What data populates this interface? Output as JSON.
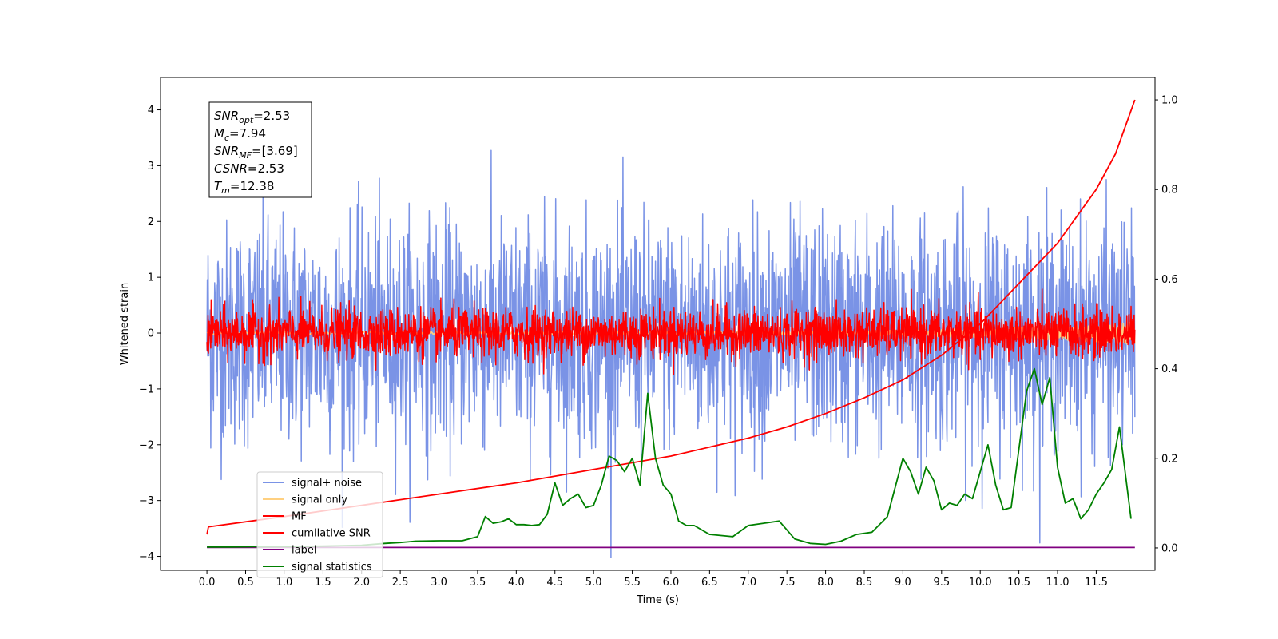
{
  "chart_data": {
    "type": "line",
    "title": "",
    "xlabel": "Time (s)",
    "ylabel": "Whitened strain",
    "y2label": "",
    "xlim": [
      -0.6,
      12.26
    ],
    "ylim": [
      -4.25,
      4.58
    ],
    "y2lim": [
      -0.05,
      1.05
    ],
    "xticks": [
      0.0,
      0.5,
      1.0,
      1.5,
      2.0,
      2.5,
      3.0,
      3.5,
      4.0,
      4.5,
      5.0,
      5.5,
      6.0,
      6.5,
      7.0,
      7.5,
      8.0,
      8.5,
      9.0,
      9.5,
      10.0,
      10.5,
      11.0,
      11.5
    ],
    "xtick_labels": [
      "0.0",
      "0.5",
      "1.0",
      "1.5",
      "2.0",
      "2.5",
      "3.0",
      "3.5",
      "4.0",
      "4.5",
      "5.0",
      "5.5",
      "6.0",
      "6.5",
      "7.0",
      "7.5",
      "8.0",
      "8.5",
      "9.0",
      "9.5",
      "10.0",
      "10.5",
      "11.0",
      "11.5"
    ],
    "yticks": [
      4,
      3,
      2,
      1,
      0,
      -1,
      -2,
      -3,
      -4
    ],
    "ytick_labels": [
      "4",
      "3",
      "2",
      "1",
      "0",
      "−1",
      "−2",
      "−3",
      "−4"
    ],
    "y2ticks": [
      1.0,
      0.8,
      0.6,
      0.4,
      0.2,
      0.0
    ],
    "y2tick_labels": [
      "1.0",
      "0.8",
      "0.6",
      "0.4",
      "0.2",
      "0.0"
    ],
    "grid": false,
    "legend_position": "lower-left",
    "legend": [
      {
        "label": "signal+ noise",
        "color": "#7a93e6"
      },
      {
        "label": "signal only",
        "color": "#ffd080"
      },
      {
        "label": "MF",
        "color": "#ff0000"
      },
      {
        "label": "cumilative SNR",
        "color": "#ff0000"
      },
      {
        "label": "label",
        "color": "#800080"
      },
      {
        "label": "signal statistics",
        "color": "#008000"
      }
    ],
    "annotation": [
      {
        "base": "SNR",
        "sub": "opt",
        "value": "=2.53"
      },
      {
        "base": "M",
        "sub": "c",
        "value": "=7.94"
      },
      {
        "base": "SNR",
        "sub": "MF",
        "value": "=[3.69]"
      },
      {
        "base": "CSNR",
        "sub": "",
        "value": "=2.53"
      },
      {
        "base": "T",
        "sub": "m",
        "value": "=12.38"
      }
    ],
    "series": [
      {
        "name": "signal+ noise",
        "axis": "left",
        "color": "#7a93e6",
        "kind": "noise",
        "x_range": [
          0.0,
          12.0
        ],
        "amplitude_std": 1.0
      },
      {
        "name": "signal only",
        "axis": "left",
        "color": "#ffd080",
        "kind": "chirp",
        "x_range": [
          0.0,
          12.0
        ]
      },
      {
        "name": "MF",
        "axis": "left",
        "color": "#ff0000",
        "kind": "noise",
        "x_range": [
          0.0,
          12.0
        ],
        "amplitude_std": 0.22
      },
      {
        "name": "cumilative SNR",
        "axis": "right",
        "color": "#ff0000",
        "x": [
          0.0,
          0.02,
          1.0,
          2.0,
          3.0,
          4.0,
          5.0,
          6.0,
          7.0,
          7.5,
          8.0,
          8.5,
          9.0,
          9.5,
          10.0,
          10.5,
          11.0,
          11.5,
          11.75,
          12.0
        ],
        "y": [
          0.03,
          0.047,
          0.07,
          0.095,
          0.12,
          0.145,
          0.175,
          0.205,
          0.245,
          0.27,
          0.3,
          0.335,
          0.375,
          0.43,
          0.5,
          0.59,
          0.68,
          0.8,
          0.88,
          1.0
        ]
      },
      {
        "name": "label",
        "axis": "right",
        "color": "#800080",
        "x": [
          0.0,
          12.0
        ],
        "y": [
          0.001,
          0.001
        ]
      },
      {
        "name": "signal statistics",
        "axis": "right",
        "color": "#008000",
        "x": [
          0.0,
          0.3,
          0.6,
          1.0,
          1.5,
          2.0,
          2.3,
          2.5,
          2.7,
          3.0,
          3.3,
          3.5,
          3.6,
          3.7,
          3.8,
          3.9,
          4.0,
          4.1,
          4.2,
          4.3,
          4.4,
          4.5,
          4.6,
          4.7,
          4.8,
          4.9,
          5.0,
          5.1,
          5.2,
          5.3,
          5.4,
          5.5,
          5.6,
          5.7,
          5.8,
          5.9,
          6.0,
          6.1,
          6.2,
          6.3,
          6.5,
          6.8,
          7.0,
          7.2,
          7.4,
          7.6,
          7.8,
          8.0,
          8.2,
          8.4,
          8.6,
          8.8,
          9.0,
          9.1,
          9.2,
          9.3,
          9.4,
          9.5,
          9.6,
          9.7,
          9.8,
          9.9,
          10.0,
          10.1,
          10.2,
          10.3,
          10.4,
          10.5,
          10.6,
          10.7,
          10.8,
          10.9,
          11.0,
          11.1,
          11.2,
          11.3,
          11.4,
          11.5,
          11.6,
          11.7,
          11.8,
          11.95
        ],
        "y": [
          0.002,
          0.002,
          0.003,
          0.003,
          0.004,
          0.006,
          0.01,
          0.012,
          0.015,
          0.016,
          0.016,
          0.025,
          0.07,
          0.055,
          0.058,
          0.065,
          0.052,
          0.052,
          0.05,
          0.052,
          0.075,
          0.145,
          0.095,
          0.11,
          0.12,
          0.09,
          0.095,
          0.14,
          0.205,
          0.195,
          0.17,
          0.2,
          0.14,
          0.345,
          0.2,
          0.14,
          0.12,
          0.06,
          0.05,
          0.05,
          0.03,
          0.025,
          0.05,
          0.055,
          0.06,
          0.02,
          0.01,
          0.008,
          0.015,
          0.03,
          0.035,
          0.07,
          0.2,
          0.17,
          0.12,
          0.18,
          0.15,
          0.085,
          0.1,
          0.095,
          0.12,
          0.11,
          0.17,
          0.23,
          0.14,
          0.085,
          0.09,
          0.22,
          0.35,
          0.4,
          0.32,
          0.38,
          0.18,
          0.1,
          0.11,
          0.065,
          0.085,
          0.12,
          0.145,
          0.175,
          0.27,
          0.065
        ]
      }
    ]
  }
}
